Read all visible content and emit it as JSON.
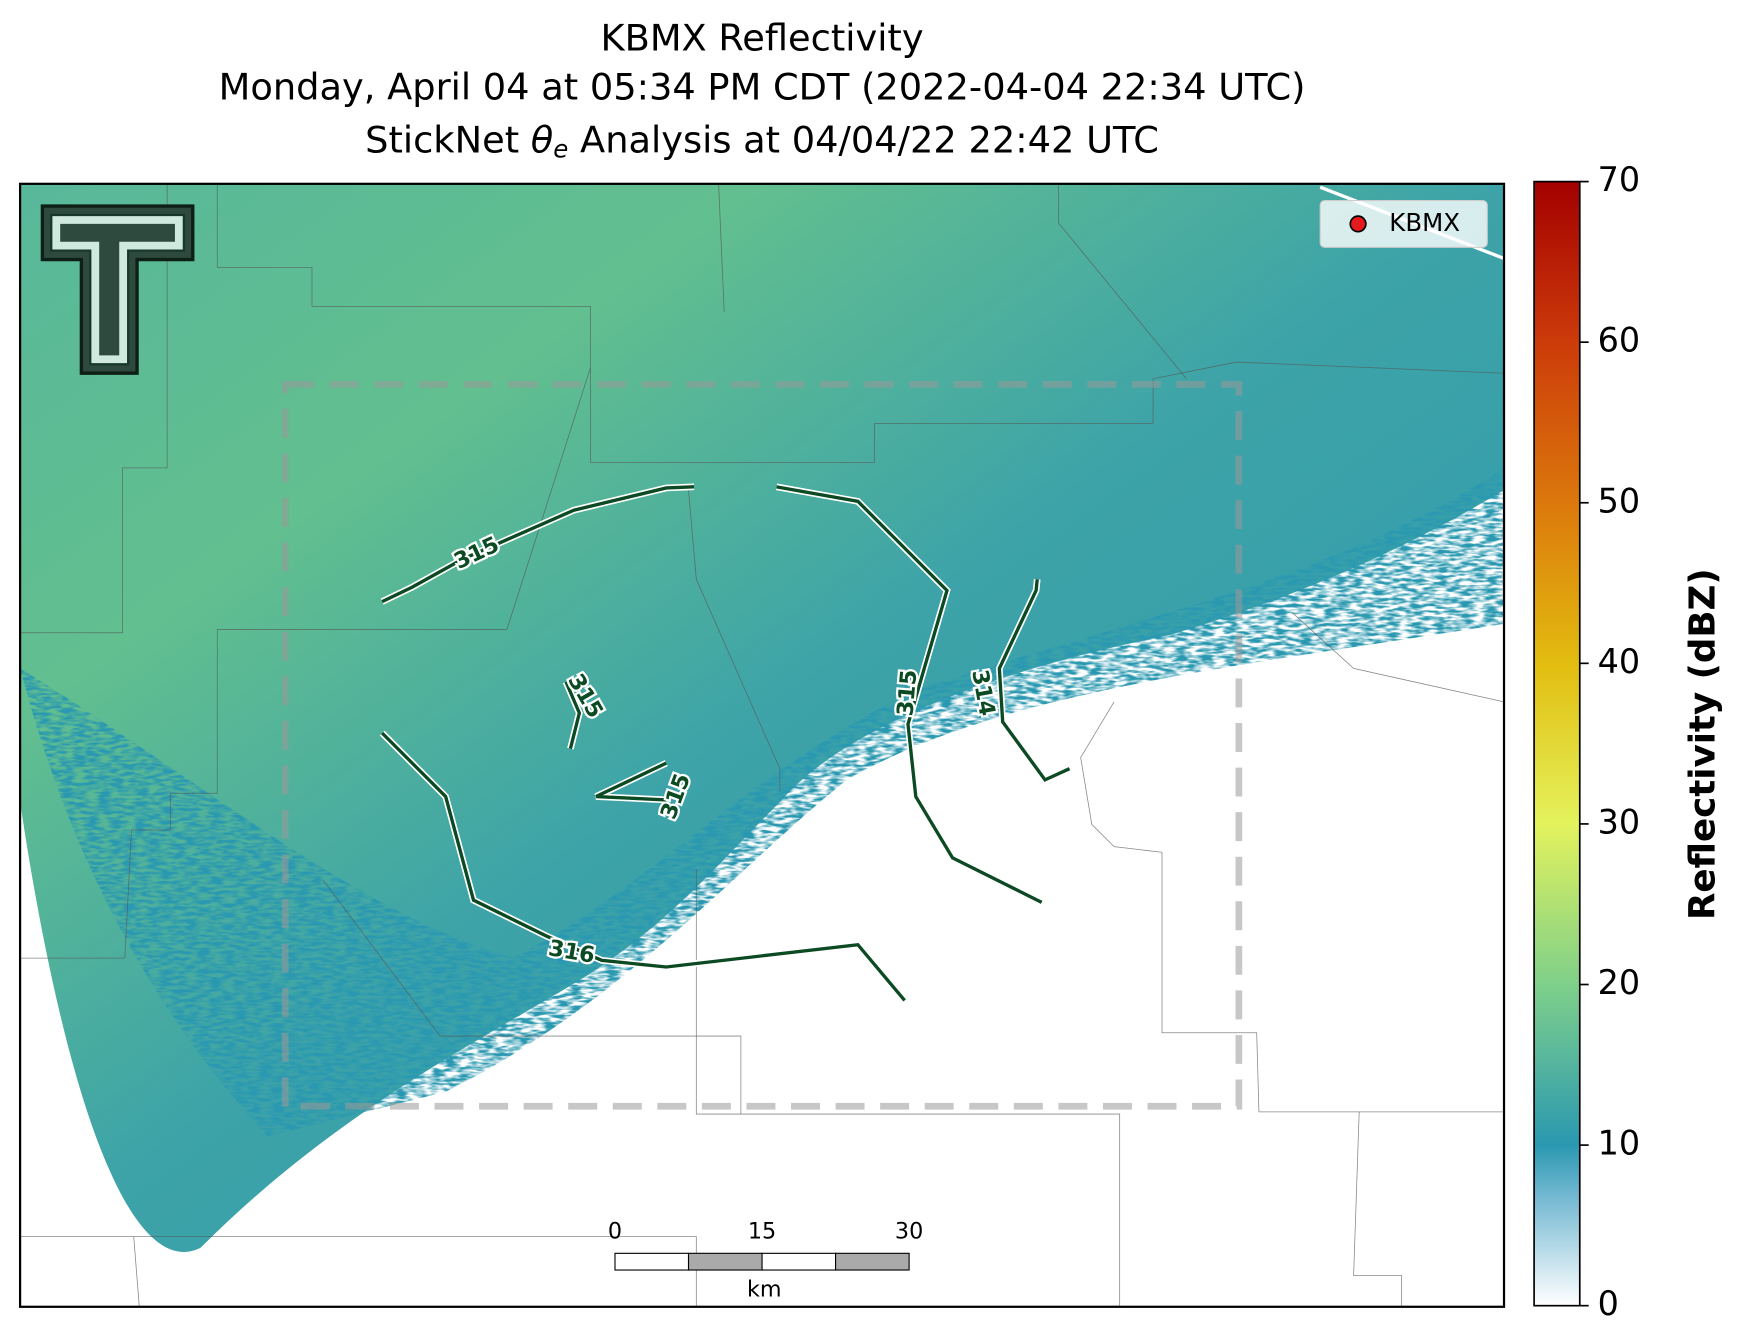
{
  "title": {
    "line1": "KBMX Reflectivity",
    "line2": "Monday, April 04 at 05:34 PM CDT (2022-04-04 22:34 UTC)",
    "line3_prefix": "StickNet",
    "line3_symbol": "θ",
    "line3_subscript": "e",
    "line3_suffix": "Analysis at 04/04/22 22:42 UTC"
  },
  "legend": {
    "label": "KBMX",
    "color": "#e41a1c"
  },
  "contour_labels": [
    315,
    315,
    314,
    315,
    315,
    316
  ],
  "scale_bar": {
    "ticks": [
      0,
      15,
      30
    ],
    "unit": "km"
  },
  "colorbar": {
    "label": "Reflectivity (dBZ)",
    "range": [
      0,
      70
    ],
    "ticks": [
      0,
      10,
      20,
      30,
      40,
      50,
      60,
      70
    ]
  }
}
